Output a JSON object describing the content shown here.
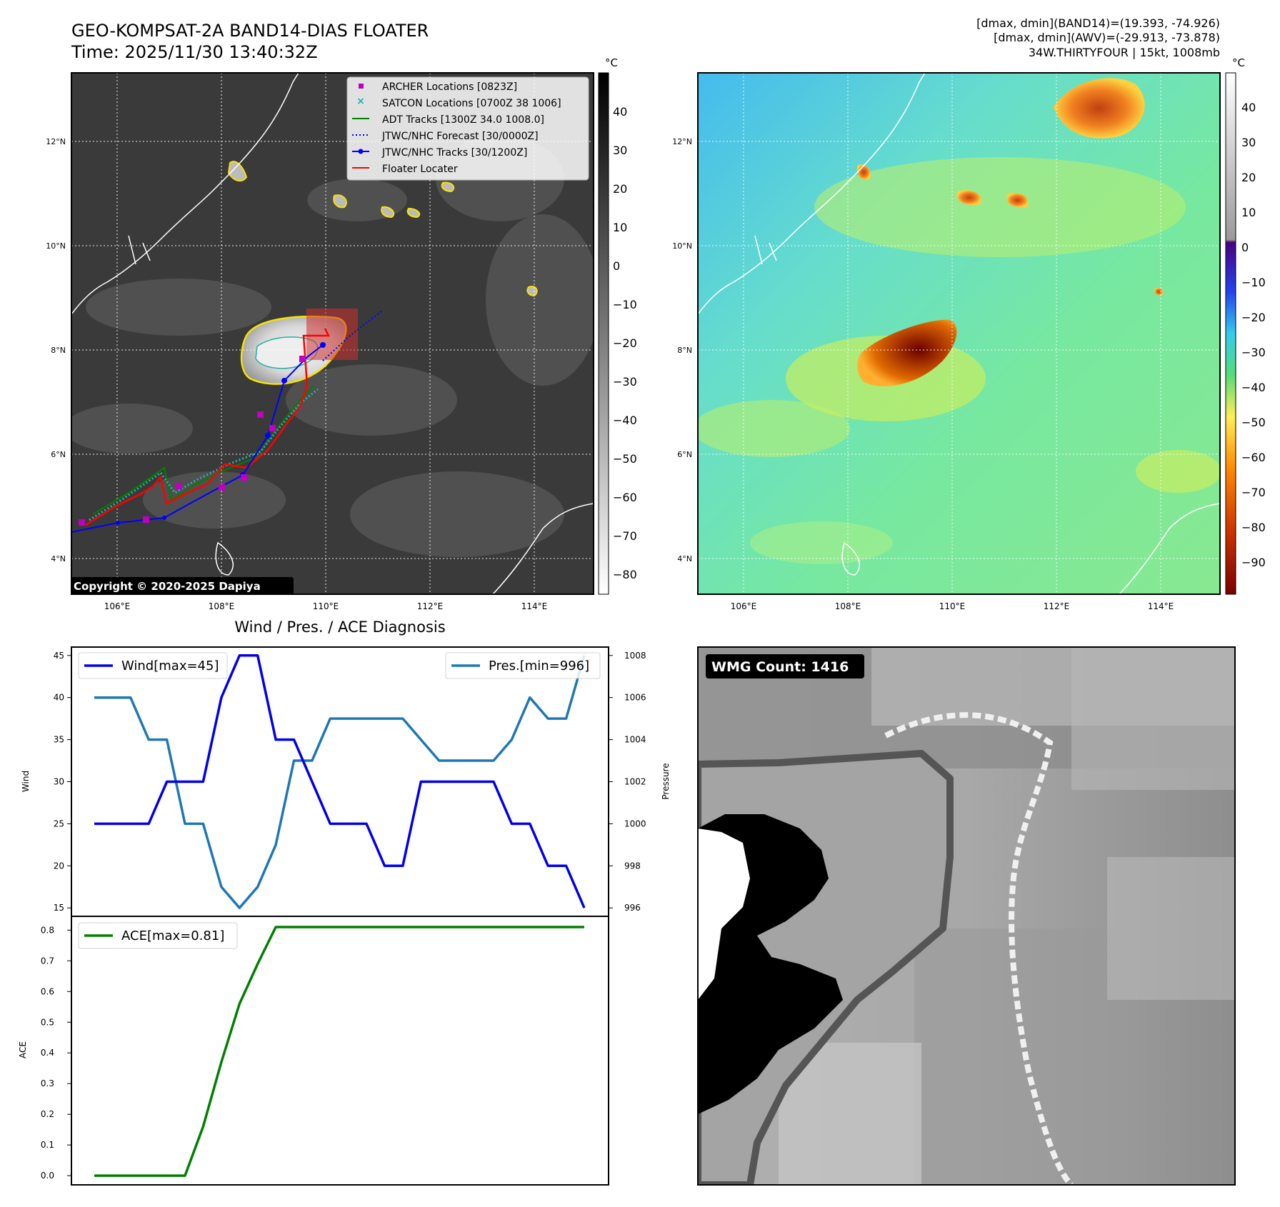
{
  "header": {
    "title": "GEO-KOMPSAT-2A BAND14-DIAS FLOATER",
    "time": "Time: 2025/11/30 13:40:32Z",
    "info": [
      "[dmax, dmin](BAND14)=(19.393, -74.926)",
      "[dmax, dmin](AWV)=(-29.913, -73.878)",
      "34W.THIRTYFOUR | 15kt, 1008mb"
    ]
  },
  "maps": {
    "lon_ticks": [
      "106°E",
      "108°E",
      "110°E",
      "112°E",
      "114°E"
    ],
    "lat_ticks": [
      "12°N",
      "10°N",
      "8°N",
      "6°N",
      "4°N"
    ],
    "lon_range": [
      105.2,
      115.2
    ],
    "lat_range": [
      3.4,
      13.4
    ],
    "copyright": "Copyright © 2020-2025 Dapiya",
    "legend": [
      {
        "label": "ARCHER Locations [0823Z]",
        "color": "#c000c0",
        "style": "square"
      },
      {
        "label": "SATCON Locations [0700Z 38 1006]",
        "color": "#20b2aa",
        "style": "x"
      },
      {
        "label": "ADT Tracks [1300Z 34.0 1008.0]",
        "color": "#008000",
        "style": "line"
      },
      {
        "label": "JTWC/NHC Forecast [30/0000Z]",
        "color": "#0000ff",
        "style": "dotted"
      },
      {
        "label": "JTWC/NHC Tracks [30/1200Z]",
        "color": "#0000ff",
        "style": "line-dot"
      },
      {
        "label": "Floater Locater",
        "color": "#ff0000",
        "style": "line"
      }
    ],
    "unit": "°C",
    "ir_colorbar_ticks": [
      "40",
      "30",
      "20",
      "10",
      "0",
      "−10",
      "−20",
      "−30",
      "−40",
      "−50",
      "−60",
      "−70",
      "−80"
    ],
    "awv_colorbar_ticks": [
      "40",
      "30",
      "20",
      "10",
      "0",
      "−10",
      "−20",
      "−30",
      "−40",
      "−50",
      "−60",
      "−70",
      "−80",
      "−90"
    ]
  },
  "chart_data": [
    {
      "type": "line",
      "title": "Wind / Pres. / ACE Diagnosis",
      "ylabel": "Wind",
      "y2label": "Pressure",
      "ylim": [
        14,
        46
      ],
      "y2lim": [
        995.6,
        1008.4
      ],
      "yticks": [
        15,
        20,
        25,
        30,
        35,
        40,
        45
      ],
      "y2ticks": [
        996,
        998,
        1000,
        1002,
        1004,
        1006,
        1008
      ],
      "x": [
        0,
        1,
        2,
        3,
        4,
        5,
        6,
        7,
        8,
        9,
        10,
        11,
        12,
        13,
        14,
        15,
        16,
        17,
        18,
        19,
        20,
        21,
        22,
        23,
        24,
        25,
        26,
        27
      ],
      "series": [
        {
          "name": "Wind[max=45]",
          "axis": "left",
          "color": "#0000ee",
          "values": [
            25,
            25,
            25,
            25,
            30,
            30,
            30,
            40,
            45,
            45,
            35,
            35,
            30,
            25,
            25,
            25,
            20,
            20,
            30,
            30,
            30,
            30,
            30,
            25,
            25,
            20,
            20,
            15
          ]
        },
        {
          "name": "Pres.[min=996]",
          "axis": "right",
          "color": "#1f77b4",
          "values": [
            1006,
            1006,
            1006,
            1004,
            1004,
            1000,
            1000,
            997,
            996,
            997,
            999,
            1003,
            1003,
            1005,
            1005,
            1005,
            1005,
            1005,
            1004,
            1003,
            1003,
            1003,
            1003,
            1004,
            1006,
            1005,
            1005,
            1008
          ]
        }
      ]
    },
    {
      "type": "line",
      "ylabel": "ACE",
      "ylim": [
        -0.03,
        0.845
      ],
      "yticks": [
        0.0,
        0.1,
        0.2,
        0.3,
        0.4,
        0.5,
        0.6,
        0.7,
        0.8
      ],
      "x": [
        0,
        1,
        2,
        3,
        4,
        5,
        6,
        7,
        8,
        9,
        10,
        11,
        12,
        13,
        14,
        15,
        16,
        17,
        18,
        19,
        20,
        21,
        22,
        23,
        24,
        25,
        26,
        27
      ],
      "series": [
        {
          "name": "ACE[max=0.81]",
          "color": "#008000",
          "values": [
            0,
            0,
            0,
            0,
            0,
            0,
            0.16,
            0.37,
            0.56,
            0.69,
            0.81,
            0.81,
            0.81,
            0.81,
            0.81,
            0.81,
            0.81,
            0.81,
            0.81,
            0.81,
            0.81,
            0.81,
            0.81,
            0.81,
            0.81,
            0.81,
            0.81,
            0.81
          ]
        }
      ]
    }
  ],
  "wmg": {
    "label": "WMG Count: 1416"
  }
}
